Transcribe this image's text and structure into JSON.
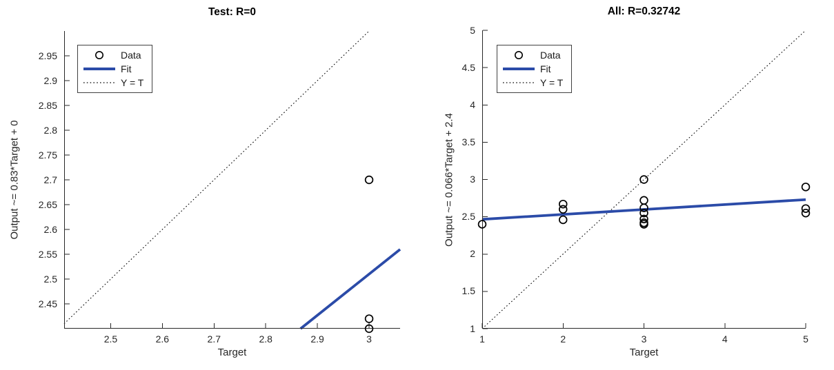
{
  "figure": {
    "background": "#ffffff"
  },
  "colors": {
    "fit_line": "#2b4ba8",
    "marker": "#000000",
    "identity_line": "#000000",
    "axis": "#262626",
    "text": "#1a1a1a",
    "title": "#000000"
  },
  "legend": {
    "items": [
      {
        "label": "Data",
        "glyph": "circle-marker"
      },
      {
        "label": "Fit",
        "glyph": "thick-line"
      },
      {
        "label": "Y = T",
        "glyph": "dotted-line"
      }
    ]
  },
  "chart_data": [
    {
      "id": "test-regression",
      "type": "scatter",
      "title": "Test: R=0",
      "r_value": 0,
      "xlabel": "Target",
      "ylabel": "Output ~= 0.83*Target + 0",
      "xlim": [
        2.41,
        3.06
      ],
      "ylim": [
        2.4,
        3.0
      ],
      "xticks": [
        2.5,
        2.6,
        2.7,
        2.8,
        2.9,
        3
      ],
      "yticks": [
        2.45,
        2.5,
        2.55,
        2.6,
        2.65,
        2.7,
        2.75,
        2.8,
        2.85,
        2.9,
        2.95
      ],
      "grid": false,
      "legend_position": "top-left",
      "points": [
        [
          3,
          2.7
        ],
        [
          3,
          2.42
        ],
        [
          3,
          2.4
        ]
      ],
      "fit": {
        "slope": 0.83,
        "intercept": 0.02
      },
      "identity_line": true
    },
    {
      "id": "all-regression",
      "type": "scatter",
      "title": "All: R=0.32742",
      "r_value": 0.32742,
      "xlabel": "Target",
      "ylabel": "Output ~= 0.066*Target + 2.4",
      "xlim": [
        1,
        5
      ],
      "ylim": [
        1,
        5
      ],
      "xticks": [
        1,
        2,
        3,
        4,
        5
      ],
      "yticks": [
        1,
        1.5,
        2,
        2.5,
        3,
        3.5,
        4,
        4.5,
        5
      ],
      "grid": false,
      "legend_position": "top-left",
      "points": [
        [
          1,
          2.4
        ],
        [
          2,
          2.67
        ],
        [
          2,
          2.6
        ],
        [
          2,
          2.46
        ],
        [
          3,
          3.0
        ],
        [
          3,
          2.72
        ],
        [
          3,
          2.62
        ],
        [
          3,
          2.55
        ],
        [
          3,
          2.47
        ],
        [
          3,
          2.42
        ],
        [
          3,
          2.4
        ],
        [
          5,
          2.9
        ],
        [
          5,
          2.61
        ],
        [
          5,
          2.55
        ]
      ],
      "fit": {
        "slope": 0.066,
        "intercept": 2.4
      },
      "identity_line": true
    }
  ]
}
